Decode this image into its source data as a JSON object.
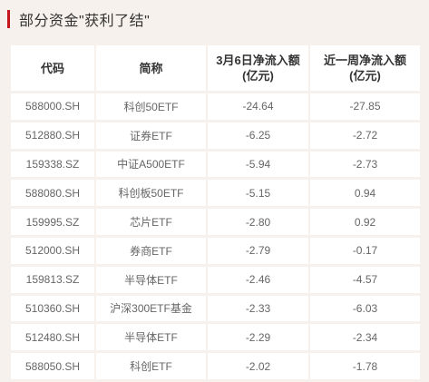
{
  "title": "部分资金\"获利了结\"",
  "headers": {
    "code": "代码",
    "name": "简称",
    "mar6_line1": "3月6日净流入额",
    "mar6_line2": "(亿元)",
    "week_line1": "近一周净流入额",
    "week_line2": "(亿元)"
  },
  "rows": [
    {
      "code": "588000.SH",
      "name": "科创50ETF",
      "mar6": "-24.64",
      "week": "-27.85"
    },
    {
      "code": "512880.SH",
      "name": "证券ETF",
      "mar6": "-6.25",
      "week": "-2.72"
    },
    {
      "code": "159338.SZ",
      "name": "中证A500ETF",
      "mar6": "-5.94",
      "week": "-2.73"
    },
    {
      "code": "588080.SH",
      "name": "科创板50ETF",
      "mar6": "-5.15",
      "week": "0.94"
    },
    {
      "code": "159995.SZ",
      "name": "芯片ETF",
      "mar6": "-2.80",
      "week": "0.92"
    },
    {
      "code": "512000.SH",
      "name": "券商ETF",
      "mar6": "-2.79",
      "week": "-0.17"
    },
    {
      "code": "159813.SZ",
      "name": "半导体ETF",
      "mar6": "-2.46",
      "week": "-4.57"
    },
    {
      "code": "510360.SH",
      "name": "沪深300ETF基金",
      "mar6": "-2.33",
      "week": "-6.03"
    },
    {
      "code": "512480.SH",
      "name": "半导体ETF",
      "mar6": "-2.29",
      "week": "-2.34"
    },
    {
      "code": "588050.SH",
      "name": "科创ETF",
      "mar6": "-2.02",
      "week": "-1.78"
    }
  ],
  "colors": {
    "accent": "#c4161c",
    "background": "#f6f1ed"
  }
}
